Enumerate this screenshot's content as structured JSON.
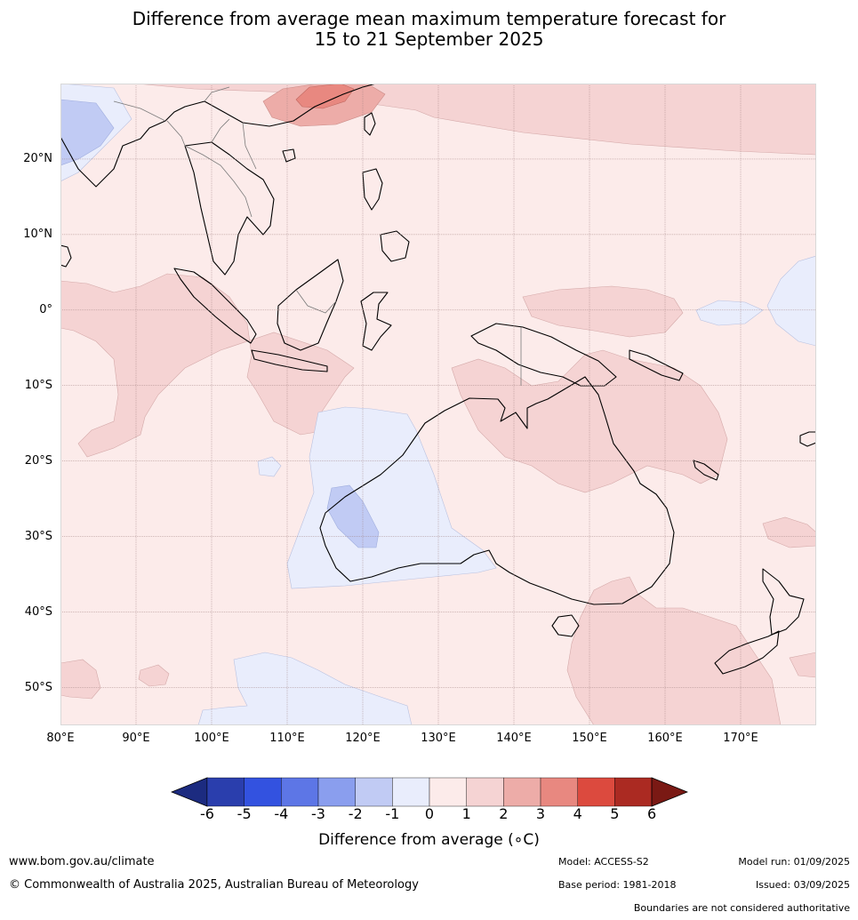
{
  "title": {
    "line1": "Difference from average mean maximum temperature forecast for",
    "line2": "15 to 21 September 2025"
  },
  "map": {
    "extent": {
      "lon_min": 80,
      "lon_max": 180,
      "lat_min": -55,
      "lat_max": 30
    },
    "lat_ticks": [
      {
        "value": 20,
        "label": "20°N"
      },
      {
        "value": 10,
        "label": "10°N"
      },
      {
        "value": 0,
        "label": "0°"
      },
      {
        "value": -10,
        "label": "10°S"
      },
      {
        "value": -20,
        "label": "20°S"
      },
      {
        "value": -30,
        "label": "30°S"
      },
      {
        "value": -40,
        "label": "40°S"
      },
      {
        "value": -50,
        "label": "50°S"
      }
    ],
    "lon_ticks": [
      {
        "value": 80,
        "label": "80°E"
      },
      {
        "value": 90,
        "label": "90°E"
      },
      {
        "value": 100,
        "label": "100°E"
      },
      {
        "value": 110,
        "label": "110°E"
      },
      {
        "value": 120,
        "label": "120°E"
      },
      {
        "value": 130,
        "label": "130°E"
      },
      {
        "value": 140,
        "label": "140°E"
      },
      {
        "value": 150,
        "label": "150°E"
      },
      {
        "value": 160,
        "label": "160°E"
      },
      {
        "value": 170,
        "label": "170°E"
      }
    ],
    "background_color": "#fcebea",
    "gridline_color": "#a08080"
  },
  "colorbar": {
    "ticks": [
      "-6",
      "-5",
      "-4",
      "-3",
      "-2",
      "-1",
      "0",
      "1",
      "2",
      "3",
      "4",
      "5",
      "6"
    ],
    "colors": [
      "#2a3ead",
      "#3352e0",
      "#5d76e6",
      "#8a9eee",
      "#c1cbf4",
      "#e9edfc",
      "#fcebea",
      "#f5d3d3",
      "#edaca8",
      "#e88880",
      "#dc4a3e",
      "#ab2a22"
    ],
    "below_color": "#1c2b80",
    "above_color": "#7a1914",
    "label": "Difference from average (∘C)"
  },
  "footer": {
    "website": "www.bom.gov.au/climate",
    "copyright": "© Commonwealth of Australia 2025, Australian Bureau of Meteorology",
    "model": "Model: ACCESS-S2",
    "base_period": "Base period: 1981-2018",
    "model_run": "Model run: 01/09/2025",
    "issued": "Issued: 03/09/2025",
    "disclaimer": "Boundaries are not considered authoritative"
  }
}
